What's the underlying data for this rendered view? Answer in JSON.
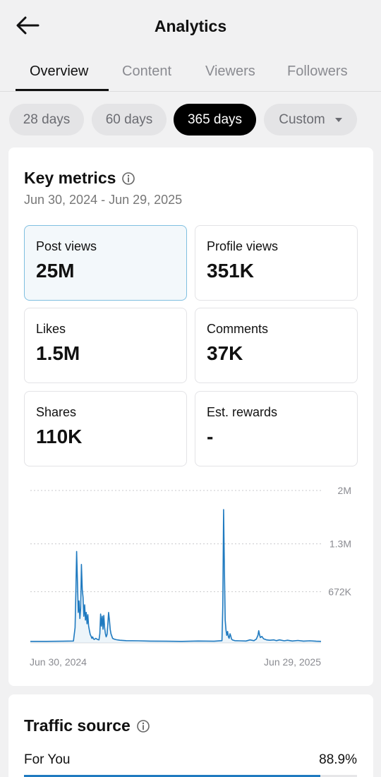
{
  "header": {
    "title": "Analytics",
    "back_icon": "arrow-left-icon"
  },
  "tabs": [
    {
      "label": "Overview",
      "active": true
    },
    {
      "label": "Content",
      "active": false
    },
    {
      "label": "Viewers",
      "active": false
    },
    {
      "label": "Followers",
      "active": false
    }
  ],
  "ranges": [
    {
      "label": "28 days",
      "active": false
    },
    {
      "label": "60 days",
      "active": false
    },
    {
      "label": "365 days",
      "active": true
    },
    {
      "label": "Custom",
      "active": false,
      "has_dropdown": true
    }
  ],
  "key_metrics": {
    "title": "Key metrics",
    "date_range": "Jun 30, 2024 - Jun 29, 2025",
    "metrics": [
      {
        "label": "Post views",
        "value": "25M",
        "selected": true
      },
      {
        "label": "Profile views",
        "value": "351K",
        "selected": false
      },
      {
        "label": "Likes",
        "value": "1.5M",
        "selected": false
      },
      {
        "label": "Comments",
        "value": "37K",
        "selected": false
      },
      {
        "label": "Shares",
        "value": "110K",
        "selected": false
      },
      {
        "label": "Est. rewards",
        "value": "-",
        "selected": false
      }
    ]
  },
  "chart_data": {
    "type": "line",
    "title": "",
    "xlabel": "",
    "ylabel": "",
    "x_tick_labels": [
      "Jun 30, 2024",
      "Jun 29, 2025"
    ],
    "y_tick_labels": [
      "2M",
      "1.3M",
      "672K"
    ],
    "y_ticks": [
      2000000,
      1300000,
      672000
    ],
    "ylim": [
      0,
      2000000
    ],
    "xlim": [
      0,
      364
    ],
    "grid": true,
    "color": "#1f7ac0",
    "series": [
      {
        "points": [
          [
            0,
            20000
          ],
          [
            20,
            20000
          ],
          [
            40,
            22000
          ],
          [
            54,
            25000
          ],
          [
            56,
            200000
          ],
          [
            57,
            650000
          ],
          [
            58,
            1200000
          ],
          [
            59,
            800000
          ],
          [
            60,
            400000
          ],
          [
            61,
            550000
          ],
          [
            62,
            320000
          ],
          [
            63,
            450000
          ],
          [
            64,
            1030000
          ],
          [
            65,
            700000
          ],
          [
            66,
            600000
          ],
          [
            67,
            350000
          ],
          [
            68,
            500000
          ],
          [
            69,
            300000
          ],
          [
            70,
            400000
          ],
          [
            71,
            250000
          ],
          [
            72,
            370000
          ],
          [
            73,
            220000
          ],
          [
            74,
            160000
          ],
          [
            75,
            110000
          ],
          [
            76,
            90000
          ],
          [
            77,
            60000
          ],
          [
            78,
            80000
          ],
          [
            79,
            55000
          ],
          [
            80,
            45000
          ],
          [
            82,
            60000
          ],
          [
            84,
            45000
          ],
          [
            86,
            40000
          ],
          [
            87,
            120000
          ],
          [
            88,
            380000
          ],
          [
            89,
            220000
          ],
          [
            90,
            350000
          ],
          [
            91,
            180000
          ],
          [
            92,
            360000
          ],
          [
            93,
            200000
          ],
          [
            94,
            120000
          ],
          [
            95,
            80000
          ],
          [
            96,
            110000
          ],
          [
            97,
            240000
          ],
          [
            98,
            400000
          ],
          [
            99,
            300000
          ],
          [
            100,
            180000
          ],
          [
            101,
            120000
          ],
          [
            102,
            90000
          ],
          [
            103,
            60000
          ],
          [
            105,
            50000
          ],
          [
            108,
            42000
          ],
          [
            112,
            35000
          ],
          [
            120,
            30000
          ],
          [
            135,
            28000
          ],
          [
            150,
            24000
          ],
          [
            170,
            22000
          ],
          [
            190,
            20000
          ],
          [
            210,
            25000
          ],
          [
            230,
            22000
          ],
          [
            240,
            30000
          ],
          [
            241,
            500000
          ],
          [
            242,
            1750000
          ],
          [
            243,
            1000000
          ],
          [
            244,
            300000
          ],
          [
            245,
            170000
          ],
          [
            246,
            100000
          ],
          [
            247,
            150000
          ],
          [
            248,
            80000
          ],
          [
            249,
            60000
          ],
          [
            250,
            120000
          ],
          [
            251,
            90000
          ],
          [
            252,
            50000
          ],
          [
            253,
            40000
          ],
          [
            256,
            30000
          ],
          [
            262,
            28000
          ],
          [
            270,
            25000
          ],
          [
            275,
            40000
          ],
          [
            280,
            30000
          ],
          [
            283,
            50000
          ],
          [
            285,
            100000
          ],
          [
            286,
            160000
          ],
          [
            287,
            110000
          ],
          [
            288,
            70000
          ],
          [
            290,
            85000
          ],
          [
            292,
            55000
          ],
          [
            296,
            40000
          ],
          [
            300,
            35000
          ],
          [
            305,
            40000
          ],
          [
            308,
            30000
          ],
          [
            312,
            40000
          ],
          [
            318,
            28000
          ],
          [
            322,
            35000
          ],
          [
            328,
            25000
          ],
          [
            335,
            32000
          ],
          [
            342,
            24000
          ],
          [
            350,
            28000
          ],
          [
            358,
            22000
          ],
          [
            364,
            20000
          ]
        ]
      }
    ]
  },
  "traffic_source": {
    "title": "Traffic source",
    "rows": [
      {
        "label": "For You",
        "percent": "88.9%",
        "value": 0.889
      }
    ]
  },
  "icons": {
    "back": "arrow-left-icon",
    "info": "info-icon",
    "dropdown": "caret-down-icon"
  }
}
